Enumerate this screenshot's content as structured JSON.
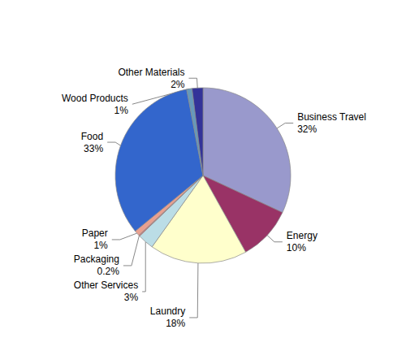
{
  "chart_data": {
    "type": "pie",
    "categories": [
      "Business Travel",
      "Energy",
      "Laundry",
      "Other Services",
      "Packaging",
      "Paper",
      "Food",
      "Wood Products",
      "Other Materials"
    ],
    "values": [
      32,
      10,
      18,
      3,
      0.2,
      1,
      33,
      1,
      2
    ],
    "value_labels": [
      "32%",
      "10%",
      "18%",
      "3%",
      "0.2%",
      "1%",
      "33%",
      "1%",
      "2%"
    ],
    "colors": [
      "#9999CC",
      "#993366",
      "#FFFFCC",
      "#BBDDE6",
      "#E07070",
      "#E8A090",
      "#3366CC",
      "#6699BB",
      "#333399"
    ],
    "data_labels": true
  }
}
